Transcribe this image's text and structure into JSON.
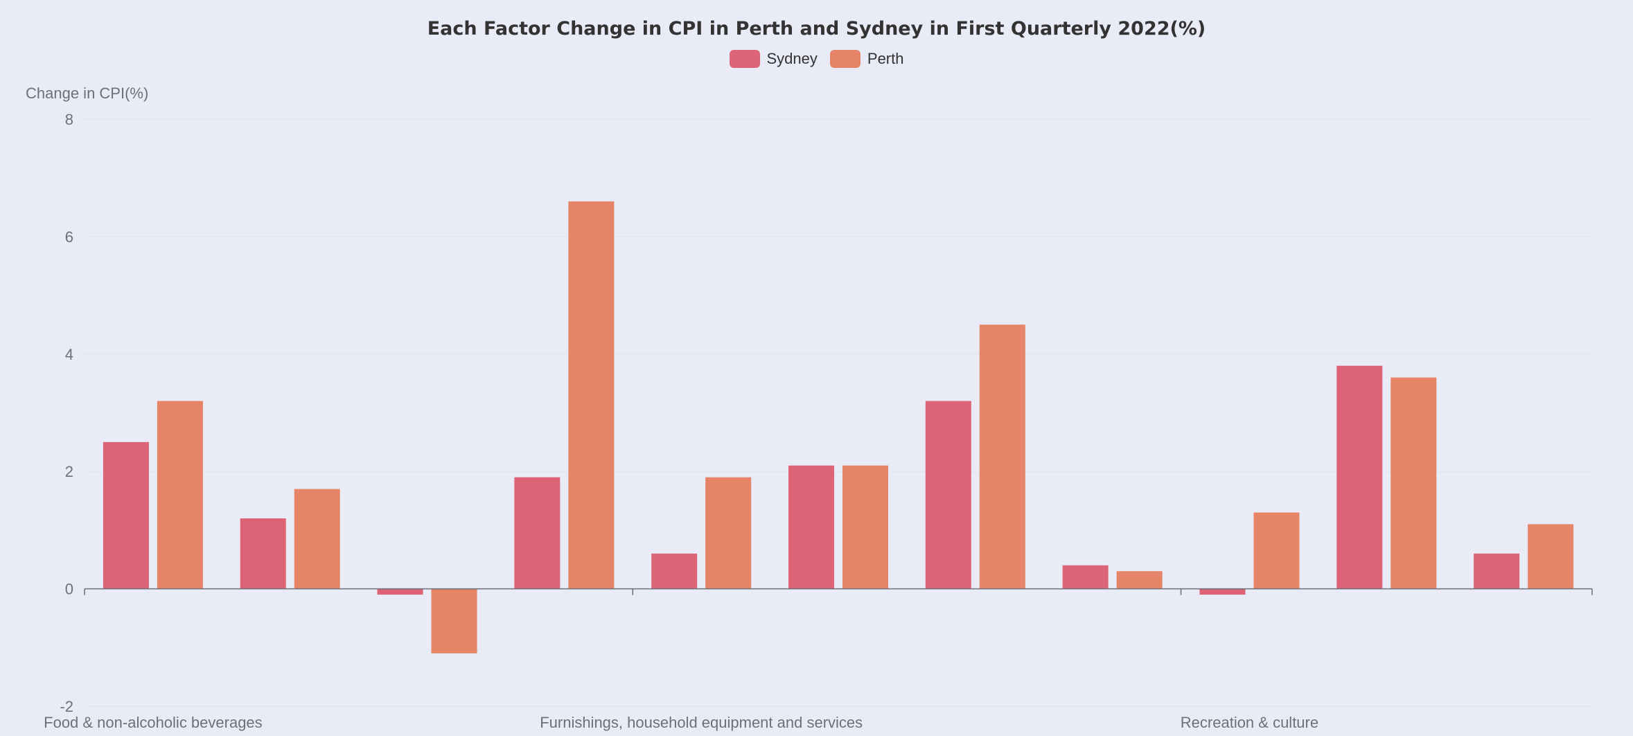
{
  "chart_data": {
    "type": "bar",
    "title": "Each Factor Change in CPI in Perth and Sydney in First Quarterly 2022(%)",
    "ylabel": "Change in CPI(%)",
    "xlabel": "",
    "ylim": [
      -2,
      8
    ],
    "yticks": [
      -2,
      0,
      2,
      4,
      6,
      8
    ],
    "grid": true,
    "legend_position": "top-center",
    "categories": [
      "Food & non-alcoholic beverages",
      "",
      "",
      "",
      "Furnishings, household equipment and services",
      "",
      "",
      "",
      "Recreation & culture",
      "",
      ""
    ],
    "series": [
      {
        "name": "Sydney",
        "color": "#dd6377",
        "values": [
          2.5,
          1.2,
          -0.1,
          1.9,
          0.6,
          2.1,
          3.2,
          0.4,
          -0.1,
          3.8,
          0.6
        ]
      },
      {
        "name": "Perth",
        "color": "#e58467",
        "values": [
          3.2,
          1.7,
          -1.1,
          6.6,
          1.9,
          2.1,
          4.5,
          0.3,
          1.3,
          3.6,
          1.1
        ]
      }
    ]
  }
}
